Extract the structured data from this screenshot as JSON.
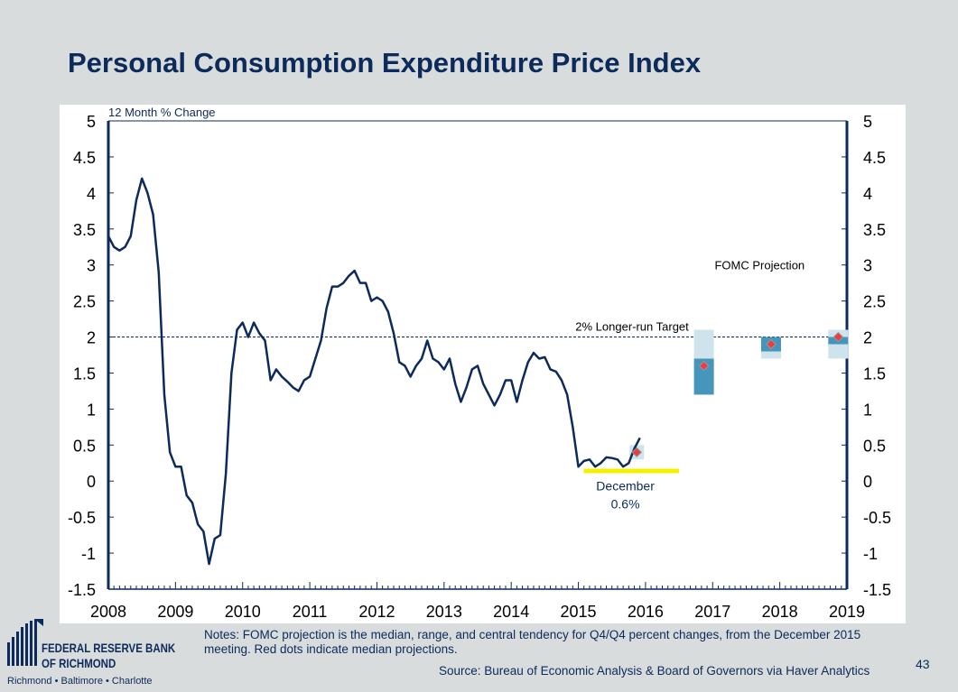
{
  "title": "Personal Consumption Expenditure Price Index",
  "logo": {
    "line1": "FEDERAL RESERVE BANK",
    "line2": "OF RICHMOND",
    "cities": "Richmond • Baltimore • Charlotte"
  },
  "notes": "Notes: FOMC projection is the median, range, and central tendency for Q4/Q4 percent changes, from the December 2015 meeting. Red dots indicate median projections.",
  "source": "Source: Bureau of Economic Analysis & Board of Governors via Haver Analytics",
  "page_number": "43",
  "chart_data": {
    "type": "line",
    "ylabel": "12 Month % Change",
    "ylim": [
      -1.5,
      5
    ],
    "yticks": [
      "5",
      "4.5",
      "4",
      "3.5",
      "3",
      "2.5",
      "2",
      "1.5",
      "1",
      "0.5",
      "0",
      "-0.5",
      "-1",
      "-1.5"
    ],
    "xlim": [
      2008,
      2019
    ],
    "xticks": [
      "2008",
      "2009",
      "2010",
      "2011",
      "2012",
      "2013",
      "2014",
      "2015",
      "2016",
      "2017",
      "2018",
      "2019"
    ],
    "colors": {
      "line": "#0c2a5a",
      "range": "#cfe3ec",
      "central": "#4696bb",
      "median": "#ef3b3b",
      "highlight": "#f5f000"
    },
    "series": {
      "start": "2008-01",
      "frequency": "monthly",
      "values": [
        3.4,
        3.25,
        3.2,
        3.25,
        3.4,
        3.9,
        4.2,
        4.0,
        3.7,
        2.9,
        1.2,
        0.4,
        0.2,
        0.2,
        -0.2,
        -0.3,
        -0.6,
        -0.7,
        -1.15,
        -0.8,
        -0.75,
        0.1,
        1.5,
        2.1,
        2.2,
        2.0,
        2.2,
        2.05,
        1.95,
        1.4,
        1.55,
        1.45,
        1.38,
        1.3,
        1.25,
        1.4,
        1.45,
        1.7,
        1.95,
        2.4,
        2.7,
        2.7,
        2.75,
        2.85,
        2.92,
        2.75,
        2.75,
        2.5,
        2.55,
        2.5,
        2.35,
        2.05,
        1.65,
        1.6,
        1.45,
        1.6,
        1.7,
        1.95,
        1.7,
        1.65,
        1.55,
        1.7,
        1.35,
        1.1,
        1.3,
        1.55,
        1.6,
        1.35,
        1.2,
        1.05,
        1.2,
        1.4,
        1.4,
        1.1,
        1.4,
        1.65,
        1.78,
        1.7,
        1.72,
        1.55,
        1.52,
        1.4,
        1.2,
        0.75,
        0.2,
        0.28,
        0.3,
        0.2,
        0.25,
        0.33,
        0.32,
        0.3,
        0.2,
        0.25,
        0.45,
        0.6
      ]
    },
    "target": {
      "value": 2,
      "label": "2% Longer-run Target"
    },
    "projection_label": "FOMC Projection",
    "projections": [
      {
        "year": 2015,
        "range": [
          0.3,
          0.5
        ],
        "central": [
          0.4,
          0.4
        ],
        "median": 0.4
      },
      {
        "year": 2016,
        "range": [
          1.2,
          2.1
        ],
        "central": [
          1.2,
          1.7
        ],
        "median": 1.6
      },
      {
        "year": 2017,
        "range": [
          1.7,
          2.0
        ],
        "central": [
          1.8,
          2.0
        ],
        "median": 1.9
      },
      {
        "year": 2018,
        "range": [
          1.7,
          2.1
        ],
        "central": [
          1.9,
          2.0
        ],
        "median": 2.0
      }
    ],
    "annotation": {
      "line1": "December",
      "line2": "0.6%"
    }
  }
}
